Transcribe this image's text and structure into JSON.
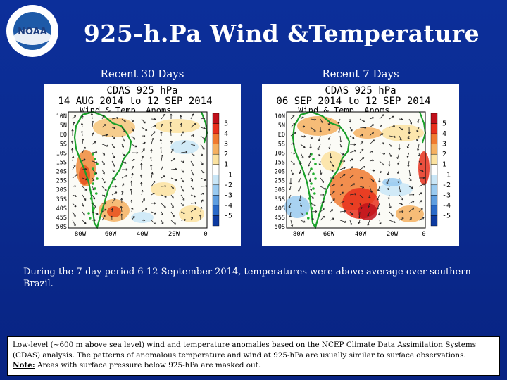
{
  "logo": {
    "text": "NOAA",
    "icon": "noaa-logo-icon",
    "ring_text": "NATIONAL OCEANIC AND ATMOSPHERIC ADMINISTRATION · U.S. DEPARTMENT OF COMMERCE"
  },
  "title": "925-h.Pa Wind &Temperature",
  "panels": [
    {
      "label": "Recent 30 Days",
      "header_line1": "CDAS 925 hPa",
      "header_line2": "14 AUG 2014 to 12 SEP 2014",
      "header_line3": "Wind & Temp. Anoms."
    },
    {
      "label": "Recent 7 Days",
      "header_line1": "CDAS 925 hPa",
      "header_line2": "06 SEP 2014 to 12 SEP 2014",
      "header_line3": "Wind & Temp. Anoms."
    }
  ],
  "lat_labels": [
    "10N",
    "5N",
    "EQ",
    "5S",
    "10S",
    "15S",
    "20S",
    "25S",
    "30S",
    "35S",
    "40S",
    "45S",
    "50S"
  ],
  "lon_labels": [
    "80W",
    "60W",
    "40W",
    "20W",
    "0"
  ],
  "colorbar": {
    "labels": [
      "5",
      "4",
      "3",
      "2",
      "1",
      "-1",
      "-2",
      "-3",
      "-4",
      "-5"
    ],
    "colors": [
      "#c0101a",
      "#e8301c",
      "#f07a30",
      "#f5b060",
      "#fbe2a0",
      "#ffffff",
      "#c9e6f7",
      "#99caf0",
      "#5e9ee0",
      "#2a6ac8",
      "#0d3aa0"
    ]
  },
  "description": "During the 7-day period 6-12 September 2014, temperatures were above average over southern Brazil.",
  "note_box": {
    "line1": "Low-level (~600 m above sea level) wind and temperature anomalies based on the NCEP Climate Data Assimilation Systems (CDAS) analysis. The patterns of anomalous temperature and wind at 925-hPa are usually similar to surface observations.",
    "note_label": "Note:",
    "note_text": " Areas with surface pressure below 925-hPa are masked out."
  }
}
